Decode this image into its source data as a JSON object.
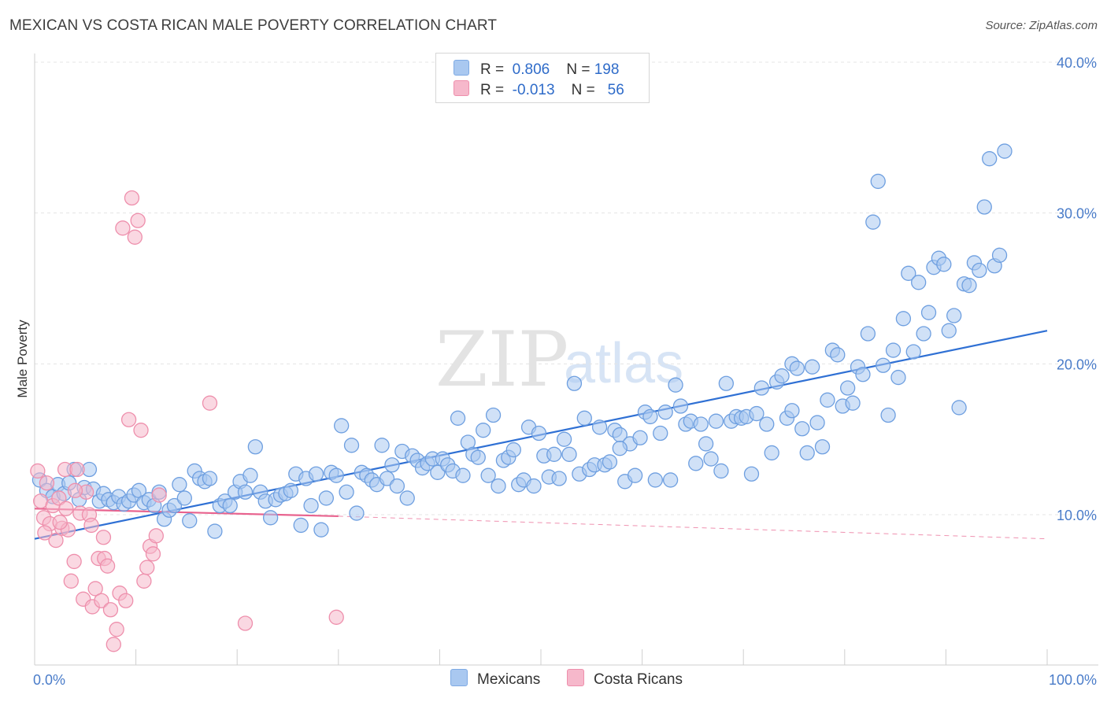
{
  "title": "MEXICAN VS COSTA RICAN MALE POVERTY CORRELATION CHART",
  "source": "Source: ZipAtlas.com",
  "watermark": {
    "zip": "ZIP",
    "atlas": "atlas"
  },
  "legend_top": [
    {
      "r_label": "R =",
      "r_value": "0.806",
      "n_label": "N =",
      "n_value": "198",
      "color": "#a9c8f0",
      "border": "#7eaae4"
    },
    {
      "r_label": "R =",
      "r_value": "-0.013",
      "n_label": "N =",
      "n_value": "56",
      "color": "#f6b8cb",
      "border": "#ee8fac"
    }
  ],
  "legend_bottom": [
    "Mexicans",
    "Costa Ricans"
  ],
  "chart_data": {
    "type": "scatter",
    "xlabel": "",
    "ylabel": "Male Poverty",
    "xlim": [
      0,
      100
    ],
    "ylim": [
      0,
      40
    ],
    "x_ticks": [
      "0.0%",
      "100.0%"
    ],
    "y_ticks": [
      {
        "value": 10,
        "label": "10.0%"
      },
      {
        "value": 20,
        "label": "20.0%"
      },
      {
        "value": 30,
        "label": "30.0%"
      },
      {
        "value": 40,
        "label": "40.0%"
      }
    ],
    "grid": "horizontal-dashed",
    "series": [
      {
        "name": "Mexicans",
        "color": "#a9c8f0",
        "stroke": "#6e9fe0",
        "trend": {
          "x0": 0,
          "y0": 8.4,
          "x1": 100,
          "y1": 22.2,
          "color": "#2f70d4",
          "dashed_from": null
        },
        "points": [
          [
            0.5,
            12.3
          ],
          [
            1.2,
            11.6
          ],
          [
            1.8,
            11.2
          ],
          [
            2.3,
            12.0
          ],
          [
            2.9,
            11.4
          ],
          [
            3.4,
            12.1
          ],
          [
            3.9,
            13.0
          ],
          [
            4.4,
            11.0
          ],
          [
            4.9,
            11.8
          ],
          [
            5.4,
            13.0
          ],
          [
            5.8,
            11.7
          ],
          [
            6.4,
            10.9
          ],
          [
            6.8,
            11.4
          ],
          [
            7.3,
            11.0
          ],
          [
            7.8,
            10.8
          ],
          [
            8.3,
            11.2
          ],
          [
            8.8,
            10.7
          ],
          [
            9.3,
            10.9
          ],
          [
            9.8,
            11.3
          ],
          [
            10.3,
            11.6
          ],
          [
            10.8,
            10.8
          ],
          [
            11.3,
            11.0
          ],
          [
            11.8,
            10.6
          ],
          [
            12.3,
            11.5
          ],
          [
            12.8,
            9.7
          ],
          [
            13.3,
            10.3
          ],
          [
            13.8,
            10.6
          ],
          [
            14.3,
            12.0
          ],
          [
            14.8,
            11.1
          ],
          [
            15.3,
            9.6
          ],
          [
            15.8,
            12.9
          ],
          [
            16.3,
            12.4
          ],
          [
            16.8,
            12.2
          ],
          [
            17.3,
            12.4
          ],
          [
            17.8,
            8.9
          ],
          [
            18.3,
            10.6
          ],
          [
            18.8,
            10.9
          ],
          [
            19.3,
            10.6
          ],
          [
            19.8,
            11.5
          ],
          [
            20.3,
            12.2
          ],
          [
            20.8,
            11.5
          ],
          [
            21.3,
            12.6
          ],
          [
            21.8,
            14.5
          ],
          [
            22.3,
            11.5
          ],
          [
            22.8,
            10.9
          ],
          [
            23.3,
            9.8
          ],
          [
            23.8,
            11.0
          ],
          [
            24.3,
            11.3
          ],
          [
            24.8,
            11.4
          ],
          [
            25.3,
            11.6
          ],
          [
            25.8,
            12.7
          ],
          [
            26.3,
            9.3
          ],
          [
            26.8,
            12.4
          ],
          [
            27.3,
            10.6
          ],
          [
            27.8,
            12.7
          ],
          [
            28.3,
            9.0
          ],
          [
            28.8,
            11.1
          ],
          [
            29.3,
            12.8
          ],
          [
            29.8,
            12.6
          ],
          [
            30.3,
            15.9
          ],
          [
            30.8,
            11.5
          ],
          [
            31.3,
            14.6
          ],
          [
            31.8,
            10.1
          ],
          [
            32.3,
            12.8
          ],
          [
            32.8,
            12.6
          ],
          [
            33.3,
            12.3
          ],
          [
            33.8,
            12.0
          ],
          [
            34.3,
            14.6
          ],
          [
            34.8,
            12.4
          ],
          [
            35.3,
            13.3
          ],
          [
            35.8,
            11.9
          ],
          [
            36.3,
            14.2
          ],
          [
            36.8,
            11.1
          ],
          [
            37.3,
            13.9
          ],
          [
            37.8,
            13.6
          ],
          [
            38.3,
            13.1
          ],
          [
            38.8,
            13.4
          ],
          [
            39.3,
            13.7
          ],
          [
            39.8,
            12.8
          ],
          [
            40.3,
            13.7
          ],
          [
            40.8,
            13.3
          ],
          [
            41.3,
            12.9
          ],
          [
            41.8,
            16.4
          ],
          [
            42.3,
            12.6
          ],
          [
            42.8,
            14.8
          ],
          [
            43.3,
            14.0
          ],
          [
            43.8,
            13.8
          ],
          [
            44.3,
            15.6
          ],
          [
            44.8,
            12.6
          ],
          [
            45.3,
            16.6
          ],
          [
            45.8,
            11.9
          ],
          [
            46.3,
            13.6
          ],
          [
            46.8,
            13.8
          ],
          [
            47.3,
            14.3
          ],
          [
            47.8,
            12.0
          ],
          [
            48.3,
            12.3
          ],
          [
            48.8,
            15.8
          ],
          [
            49.3,
            11.9
          ],
          [
            49.8,
            15.4
          ],
          [
            50.3,
            13.9
          ],
          [
            50.8,
            12.5
          ],
          [
            51.3,
            14.0
          ],
          [
            51.8,
            12.4
          ],
          [
            52.3,
            15.0
          ],
          [
            52.8,
            14.0
          ],
          [
            53.3,
            18.7
          ],
          [
            53.8,
            12.7
          ],
          [
            54.3,
            16.4
          ],
          [
            54.8,
            13.0
          ],
          [
            55.3,
            13.3
          ],
          [
            55.8,
            15.8
          ],
          [
            56.3,
            13.3
          ],
          [
            56.8,
            13.5
          ],
          [
            57.3,
            15.6
          ],
          [
            57.8,
            15.3
          ],
          [
            58.3,
            12.2
          ],
          [
            58.8,
            14.7
          ],
          [
            59.3,
            12.6
          ],
          [
            59.8,
            15.1
          ],
          [
            60.3,
            16.8
          ],
          [
            60.8,
            16.5
          ],
          [
            61.3,
            12.3
          ],
          [
            61.8,
            15.4
          ],
          [
            62.3,
            16.8
          ],
          [
            62.8,
            12.3
          ],
          [
            63.3,
            18.6
          ],
          [
            63.8,
            17.2
          ],
          [
            64.3,
            16.0
          ],
          [
            64.8,
            16.2
          ],
          [
            65.3,
            13.4
          ],
          [
            65.8,
            16.0
          ],
          [
            66.3,
            14.7
          ],
          [
            66.8,
            13.7
          ],
          [
            67.3,
            16.2
          ],
          [
            67.8,
            12.9
          ],
          [
            68.3,
            18.7
          ],
          [
            68.8,
            16.2
          ],
          [
            69.3,
            16.5
          ],
          [
            69.8,
            16.4
          ],
          [
            70.3,
            16.5
          ],
          [
            70.8,
            12.7
          ],
          [
            71.3,
            16.7
          ],
          [
            71.8,
            18.4
          ],
          [
            72.3,
            16.0
          ],
          [
            72.8,
            14.1
          ],
          [
            73.3,
            18.8
          ],
          [
            73.8,
            19.2
          ],
          [
            74.3,
            16.4
          ],
          [
            74.8,
            20.0
          ],
          [
            75.3,
            19.7
          ],
          [
            75.8,
            15.7
          ],
          [
            76.3,
            14.1
          ],
          [
            76.8,
            19.8
          ],
          [
            77.3,
            16.1
          ],
          [
            77.8,
            14.5
          ],
          [
            78.3,
            17.6
          ],
          [
            78.8,
            20.9
          ],
          [
            79.3,
            20.6
          ],
          [
            79.8,
            17.2
          ],
          [
            80.3,
            18.4
          ],
          [
            80.8,
            17.4
          ],
          [
            81.3,
            19.8
          ],
          [
            81.8,
            19.3
          ],
          [
            82.3,
            22.0
          ],
          [
            82.8,
            29.4
          ],
          [
            83.3,
            32.1
          ],
          [
            83.8,
            19.9
          ],
          [
            84.3,
            16.6
          ],
          [
            84.8,
            20.9
          ],
          [
            85.3,
            19.1
          ],
          [
            85.8,
            23.0
          ],
          [
            86.3,
            26.0
          ],
          [
            86.8,
            20.8
          ],
          [
            87.3,
            25.4
          ],
          [
            87.8,
            22.0
          ],
          [
            88.3,
            23.4
          ],
          [
            88.8,
            26.4
          ],
          [
            89.3,
            27.0
          ],
          [
            89.8,
            26.6
          ],
          [
            90.3,
            22.2
          ],
          [
            90.8,
            23.2
          ],
          [
            91.3,
            17.1
          ],
          [
            91.8,
            25.3
          ],
          [
            92.3,
            25.2
          ],
          [
            92.8,
            26.7
          ],
          [
            93.3,
            26.2
          ],
          [
            93.8,
            30.4
          ],
          [
            94.3,
            33.6
          ],
          [
            94.8,
            26.5
          ],
          [
            95.3,
            27.2
          ],
          [
            95.8,
            34.1
          ],
          [
            57.8,
            14.4
          ],
          [
            74.8,
            16.9
          ]
        ]
      },
      {
        "name": "Costa Ricans",
        "color": "#f6b8cb",
        "stroke": "#ee8fac",
        "trend": {
          "x0": 0,
          "y0": 10.4,
          "x1": 30,
          "y1": 9.9,
          "color": "#e8628e",
          "dashed_to": {
            "x": 100,
            "y": 8.4
          }
        },
        "points": [
          [
            0.3,
            12.9
          ],
          [
            0.6,
            10.9
          ],
          [
            0.9,
            9.8
          ],
          [
            1.2,
            12.1
          ],
          [
            1.5,
            9.4
          ],
          [
            1.8,
            10.6
          ],
          [
            2.1,
            8.3
          ],
          [
            2.4,
            11.1
          ],
          [
            2.7,
            9.1
          ],
          [
            3.0,
            13.0
          ],
          [
            3.3,
            9.0
          ],
          [
            3.6,
            5.6
          ],
          [
            3.9,
            6.9
          ],
          [
            4.2,
            13.0
          ],
          [
            4.5,
            10.1
          ],
          [
            4.8,
            4.4
          ],
          [
            5.1,
            11.5
          ],
          [
            5.4,
            10.0
          ],
          [
            5.7,
            3.9
          ],
          [
            6.0,
            5.1
          ],
          [
            6.3,
            7.1
          ],
          [
            6.6,
            4.3
          ],
          [
            6.9,
            7.1
          ],
          [
            7.2,
            6.6
          ],
          [
            7.5,
            3.7
          ],
          [
            7.8,
            1.4
          ],
          [
            8.1,
            2.4
          ],
          [
            8.4,
            4.8
          ],
          [
            8.7,
            29.0
          ],
          [
            9.0,
            4.3
          ],
          [
            9.3,
            16.3
          ],
          [
            9.6,
            31.0
          ],
          [
            9.9,
            28.4
          ],
          [
            10.2,
            29.5
          ],
          [
            10.5,
            15.6
          ],
          [
            10.8,
            5.6
          ],
          [
            11.1,
            6.5
          ],
          [
            11.4,
            7.9
          ],
          [
            11.7,
            7.4
          ],
          [
            12.0,
            8.6
          ],
          [
            12.3,
            11.3
          ],
          [
            17.3,
            17.4
          ],
          [
            20.8,
            2.8
          ],
          [
            29.8,
            3.2
          ],
          [
            4.0,
            11.6
          ],
          [
            3.1,
            10.4
          ],
          [
            5.6,
            9.3
          ],
          [
            2.5,
            9.5
          ],
          [
            6.8,
            8.5
          ],
          [
            1.0,
            8.8
          ]
        ]
      }
    ]
  }
}
